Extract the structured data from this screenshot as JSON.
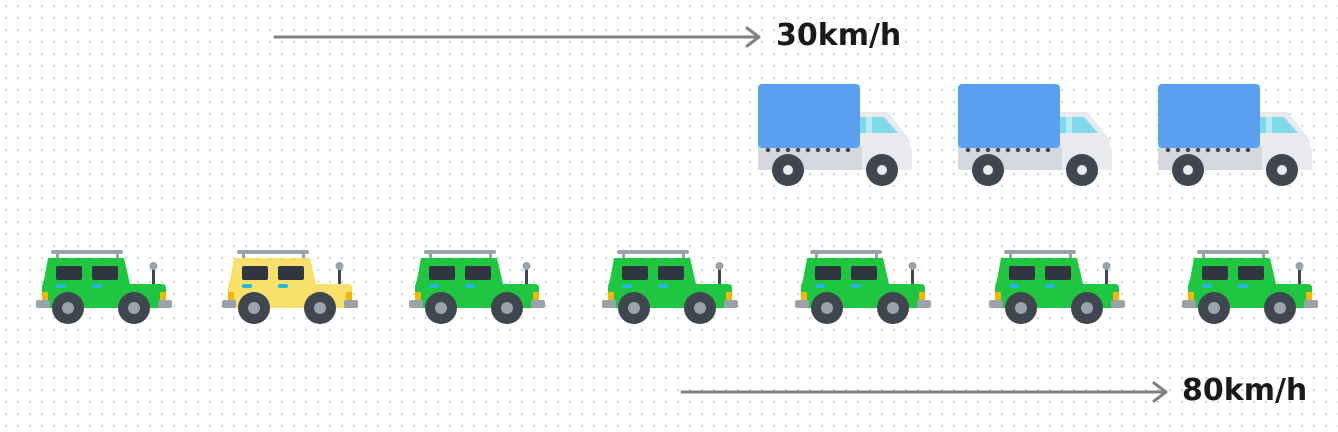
{
  "trucks": {
    "speed_label": "30km/h",
    "count": 3,
    "colors": {
      "cargo": "#5b9ff0",
      "cab": "#e8eaee",
      "window": "#7fd8ec",
      "wheel": "#3f4650"
    }
  },
  "cars": {
    "speed_label": "80km/h",
    "count": 7,
    "colors": [
      "green",
      "yellow",
      "green",
      "green",
      "green",
      "green",
      "green"
    ],
    "palette": {
      "green": "#1fc740",
      "yellow": "#f7e16b",
      "window": "#2f363f",
      "wheel": "#3f4650",
      "rack": "#9aa2ab"
    }
  },
  "arrow_color": "#808080"
}
